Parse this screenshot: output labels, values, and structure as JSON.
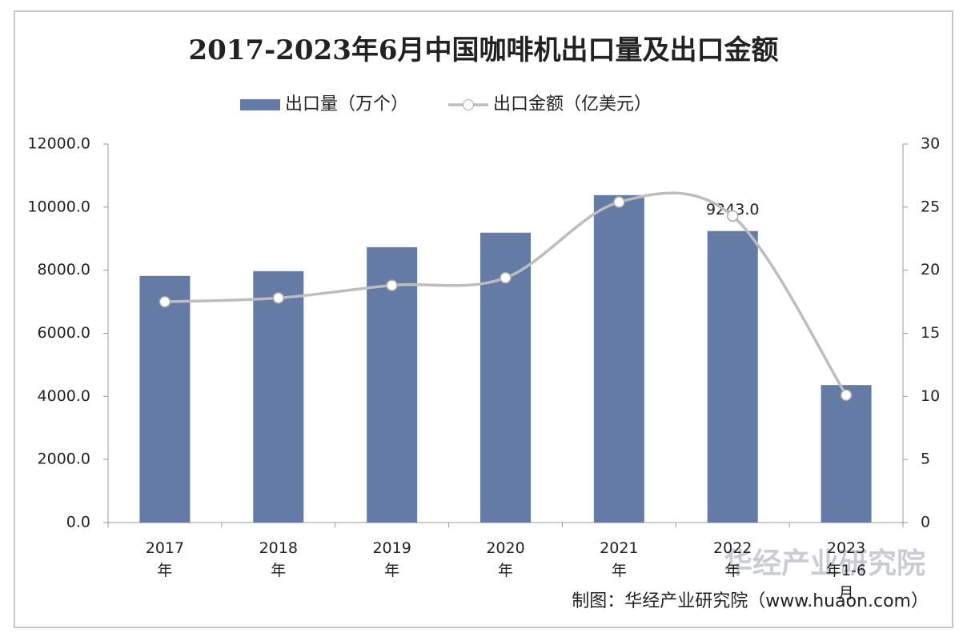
{
  "chart_data": {
    "type": "bar-line",
    "title": "2017-2023年6月中国咖啡机出口量及出口金额",
    "categories": [
      "2017年",
      "2018年",
      "2019年",
      "2020年",
      "2021年",
      "2022年",
      "2023年1-6月"
    ],
    "series": [
      {
        "name": "出口量（万个）",
        "type": "bar",
        "color": "#637ba5",
        "values": [
          7820,
          7970,
          8730,
          9190,
          10380,
          9243,
          4360
        ],
        "value_labels": [
          null,
          null,
          null,
          null,
          null,
          "9243.0",
          null
        ]
      },
      {
        "name": "出口金额（亿美元）",
        "type": "line",
        "axis": "y2",
        "color": "#bdbdbd",
        "values": [
          17.5,
          17.8,
          18.8,
          19.4,
          25.4,
          24.3,
          10.1
        ]
      }
    ],
    "ylim": [
      0,
      12000
    ],
    "yticks": [
      {
        "value": 0,
        "label": "0.0"
      },
      {
        "value": 2000,
        "label": "2000.0"
      },
      {
        "value": 4000,
        "label": "4000.0"
      },
      {
        "value": 6000,
        "label": "6000.0"
      },
      {
        "value": 8000,
        "label": "8000.0"
      },
      {
        "value": 10000,
        "label": "10000.0"
      },
      {
        "value": 12000,
        "label": "12000.0"
      }
    ],
    "y2lim": [
      0,
      30
    ],
    "y2ticks": [
      0,
      5,
      10,
      15,
      20,
      25,
      30
    ],
    "source": "制图：华经产业研究院（www.huaon.com）",
    "watermark": "华经产业研究院"
  }
}
